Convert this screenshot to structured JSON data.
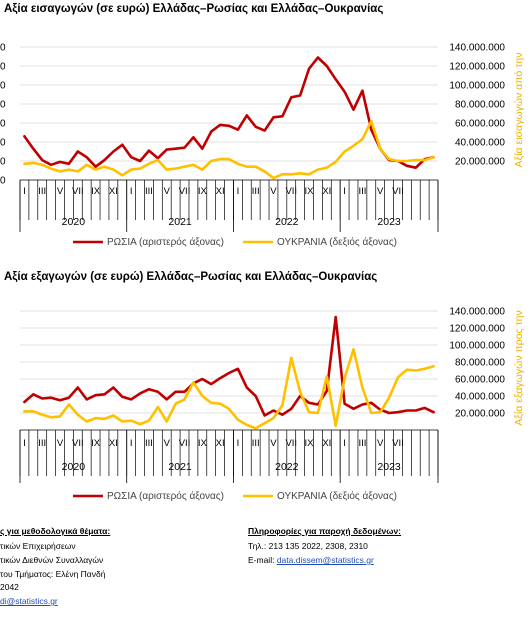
{
  "colors": {
    "russia": "#C00000",
    "ukraine": "#FFC000",
    "right_axis_label": "#F2B200",
    "grid": "#D9D9D9"
  },
  "chart_data": [
    {
      "type": "line",
      "title": "Αξία εισαγωγών (σε ευρώ) Ελλάδας–Ρωσίας και Ελλάδας–Ουκρανίας",
      "x_tick_labels": [
        "I",
        "III",
        "V",
        "VII",
        "IX",
        "XI",
        "I",
        "III",
        "V",
        "VII",
        "IX",
        "XI",
        "I",
        "III",
        "V",
        "VII",
        "IX",
        "XI",
        "I",
        "III",
        "V",
        "VII"
      ],
      "years": [
        "2020",
        "2021",
        "2022",
        "2023"
      ],
      "left_ticks": [
        "0",
        "0",
        "0",
        "0",
        "0",
        "0",
        "0",
        "0"
      ],
      "right_ticks": [
        "20.000.000",
        "40.000.000",
        "60.000.000",
        "80.000.000",
        "100.000.000",
        "120.000.000",
        "140.000.000"
      ],
      "right_axis_label": "Αξία εισαγωγών από την",
      "ylim_right": [
        0,
        140000000
      ],
      "series": [
        {
          "name": "ΡΩΣΙΑ (αριστερός άξονας)",
          "values": [
            46000000,
            33000000,
            21000000,
            16000000,
            19000000,
            17000000,
            30000000,
            24000000,
            14000000,
            21000000,
            30000000,
            37000000,
            24000000,
            20000000,
            31000000,
            23000000,
            32000000,
            33000000,
            34000000,
            45000000,
            33000000,
            51000000,
            58000000,
            57000000,
            53000000,
            68000000,
            56000000,
            52000000,
            66000000,
            67000000,
            87000000,
            89000000,
            117000000,
            129000000,
            120000000,
            106000000,
            93000000,
            74000000,
            94000000,
            53000000,
            33000000,
            21000000,
            20000000,
            15000000,
            13000000,
            22000000,
            24000000
          ]
        },
        {
          "name": "ΟΥΚΡΑΝΙΑ (δεξιός άξονας)",
          "values": [
            17000000,
            18000000,
            16000000,
            12000000,
            9000000,
            11000000,
            9000000,
            16000000,
            11000000,
            14000000,
            11000000,
            5000000,
            11000000,
            12000000,
            17000000,
            21000000,
            11000000,
            12000000,
            14000000,
            16000000,
            11000000,
            20000000,
            22000000,
            22000000,
            17000000,
            14000000,
            14000000,
            9000000,
            2000000,
            6000000,
            6000000,
            7000000,
            6000000,
            11000000,
            13000000,
            19000000,
            30000000,
            36000000,
            43000000,
            62000000,
            33000000,
            22000000,
            20000000,
            20000000,
            21000000,
            21000000,
            24000000
          ]
        }
      ]
    },
    {
      "type": "line",
      "title": "Αξία εξαγωγών (σε ευρώ) Ελλάδας–Ρωσίας και Ελλάδας–Ουκρανίας",
      "x_tick_labels": [
        "I",
        "III",
        "V",
        "VII",
        "IX",
        "XI",
        "I",
        "III",
        "V",
        "VII",
        "IX",
        "XI",
        "I",
        "III",
        "V",
        "VII",
        "IX",
        "XI",
        "I",
        "III",
        "V",
        "VII"
      ],
      "years": [
        "2020",
        "2021",
        "2022",
        "2023"
      ],
      "right_ticks": [
        "20.000.000",
        "40.000.000",
        "60.000.000",
        "80.000.000",
        "100.000.000",
        "120.000.000",
        "140.000.000"
      ],
      "right_axis_label": "Αξία εξαγωγών προς την",
      "ylim_right": [
        0,
        140000000
      ],
      "series": [
        {
          "name": "ΡΩΣΙΑ (αριστερός άξονας)",
          "values": [
            33000000,
            42000000,
            37000000,
            38000000,
            35000000,
            38000000,
            50000000,
            36000000,
            41000000,
            42000000,
            50000000,
            39000000,
            36000000,
            43000000,
            48000000,
            45000000,
            36000000,
            45000000,
            45000000,
            55000000,
            60000000,
            54000000,
            61000000,
            67000000,
            72000000,
            50000000,
            40000000,
            17000000,
            23000000,
            18000000,
            25000000,
            40000000,
            32000000,
            30000000,
            46000000,
            133000000,
            31000000,
            25000000,
            30000000,
            32000000,
            24000000,
            20000000,
            21000000,
            23000000,
            23000000,
            26000000,
            21000000
          ]
        },
        {
          "name": "ΟΥΚΡΑΝΙΑ (δεξιός άξονας)",
          "values": [
            22000000,
            22000000,
            18000000,
            15000000,
            16000000,
            30000000,
            18000000,
            10000000,
            14000000,
            13000000,
            17000000,
            10000000,
            11000000,
            7000000,
            11000000,
            27000000,
            10000000,
            31000000,
            36000000,
            56000000,
            40000000,
            32000000,
            31000000,
            25000000,
            12000000,
            6000000,
            2000000,
            8000000,
            14000000,
            29000000,
            85000000,
            45000000,
            21000000,
            20000000,
            63000000,
            5000000,
            61000000,
            95000000,
            50000000,
            20000000,
            21000000,
            38000000,
            62000000,
            71000000,
            70000000,
            72000000,
            75000000
          ]
        }
      ]
    }
  ],
  "footer": {
    "left_heading": "ς για μεθοδολογικά θέματα:",
    "left_lines": [
      "τικών Επιχειρήσεων",
      "τικών Διεθνών Συναλλαγών",
      "του Τμήματος: Ελένη Πανδή",
      " 2042"
    ],
    "left_email": "di@statistics.gr",
    "right_heading": "Πληροφορίες για παροχή δεδομένων:",
    "right_phone": "Τηλ.: 213 135 2022, 2308, 2310",
    "right_email_prefix": "E-mail: ",
    "right_email": "data.dissem@statistics.gr"
  }
}
